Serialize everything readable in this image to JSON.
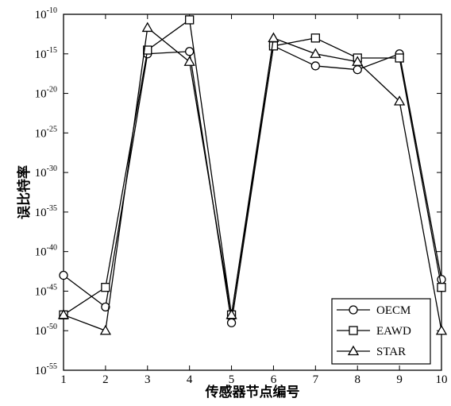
{
  "chart_data": {
    "type": "line",
    "title": "",
    "xlabel": "传感器节点编号",
    "ylabel": "误比特率",
    "x": [
      1,
      2,
      3,
      4,
      5,
      6,
      7,
      8,
      9,
      10
    ],
    "xlim": [
      1,
      10
    ],
    "ylog": true,
    "ylim_exponent": [
      -55,
      -10
    ],
    "y_tick_exponents": [
      -10,
      -15,
      -20,
      -25,
      -30,
      -35,
      -40,
      -45,
      -50,
      -55
    ],
    "y_tick_base": "10",
    "grid": false,
    "legend_position": "bottom-right",
    "series": [
      {
        "name": "OECM",
        "marker": "circle",
        "color": "#000000",
        "values": [
          1e-43,
          1e-47,
          1e-15,
          2e-15,
          1e-49,
          1e-14,
          3e-17,
          1e-17,
          1e-15,
          3e-44
        ]
      },
      {
        "name": "EAWD",
        "marker": "square",
        "color": "#000000",
        "values": [
          1e-48,
          3e-45,
          3e-15,
          2e-11,
          1e-48,
          1e-14,
          1e-13,
          3e-16,
          3e-16,
          3e-45
        ]
      },
      {
        "name": "STAR",
        "marker": "triangle",
        "color": "#000000",
        "values": [
          1e-48,
          1e-50,
          2e-12,
          1e-16,
          1e-48,
          1e-13,
          1e-15,
          1e-16,
          1e-21,
          1e-50
        ]
      }
    ]
  }
}
